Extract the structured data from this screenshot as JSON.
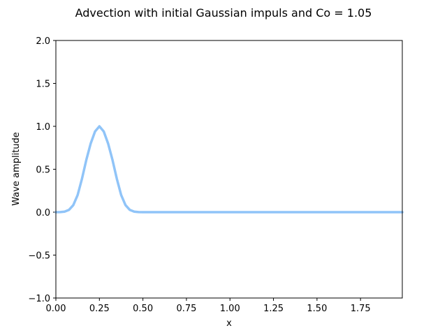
{
  "chart_data": {
    "type": "line",
    "title": "Advection with initial Gaussian impuls and Co = 1.05",
    "xlabel": "x",
    "ylabel": "Wave amplitude",
    "xlim": [
      0.0,
      1.99
    ],
    "ylim": [
      -1.0,
      2.0
    ],
    "xticks": [
      "0.00",
      "0.25",
      "0.50",
      "0.75",
      "1.00",
      "1.25",
      "1.50",
      "1.75"
    ],
    "yticks": [
      "−1.0",
      "−0.5",
      "0.0",
      "0.5",
      "1.0",
      "1.5",
      "2.0"
    ],
    "grid": false,
    "series": [
      {
        "color": "#90c4f8",
        "x": [
          0.0,
          0.025,
          0.05,
          0.075,
          0.1,
          0.125,
          0.15,
          0.175,
          0.2,
          0.225,
          0.25,
          0.275,
          0.3,
          0.325,
          0.35,
          0.375,
          0.4,
          0.425,
          0.45,
          0.475,
          0.5,
          0.6,
          0.8,
          1.0,
          1.2,
          1.4,
          1.6,
          1.8,
          1.99
        ],
        "values": [
          0.0,
          0.001,
          0.006,
          0.026,
          0.082,
          0.2,
          0.39,
          0.61,
          0.8,
          0.94,
          1.0,
          0.94,
          0.8,
          0.61,
          0.39,
          0.2,
          0.082,
          0.026,
          0.006,
          0.001,
          0.0,
          0.0,
          0.0,
          0.0,
          0.0,
          0.0,
          0.0,
          0.0,
          0.0
        ]
      }
    ]
  }
}
